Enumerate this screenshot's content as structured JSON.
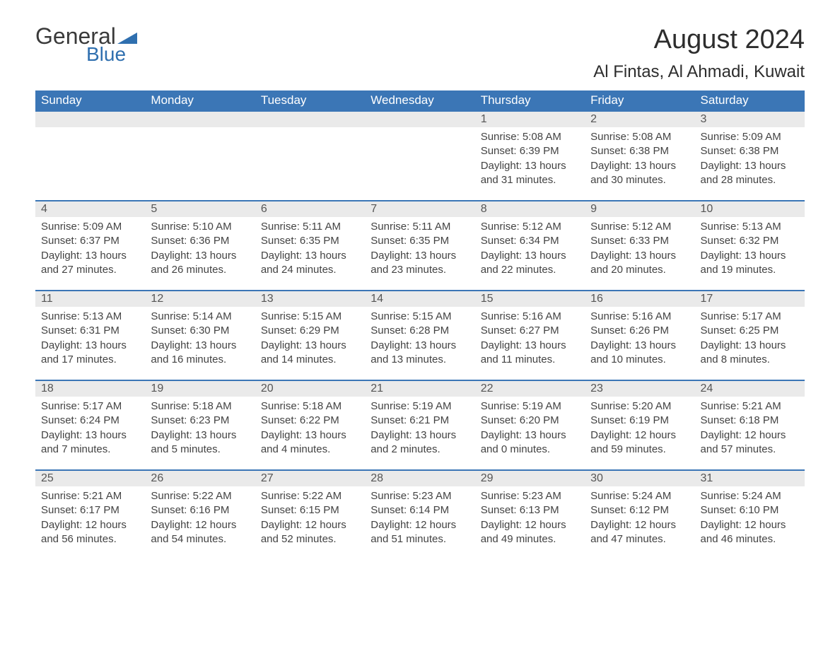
{
  "logo": {
    "word1": "General",
    "word2": "Blue",
    "icon_color": "#2f6faf"
  },
  "header": {
    "title": "August 2024",
    "location": "Al Fintas, Al Ahmadi, Kuwait"
  },
  "colors": {
    "header_bg": "#3b76b6",
    "header_text": "#ffffff",
    "day_header_bg": "#eaeaea",
    "day_header_text": "#565656",
    "row_divider": "#3b76b6",
    "body_text": "#434343",
    "accent": "#2f6faf"
  },
  "labels": {
    "sunrise": "Sunrise:",
    "sunset": "Sunset:",
    "daylight": "Daylight:"
  },
  "daysOfWeek": [
    "Sunday",
    "Monday",
    "Tuesday",
    "Wednesday",
    "Thursday",
    "Friday",
    "Saturday"
  ],
  "weeks": [
    [
      {
        "day": null
      },
      {
        "day": null
      },
      {
        "day": null
      },
      {
        "day": null
      },
      {
        "day": "1",
        "sunrise": "5:08 AM",
        "sunset": "6:39 PM",
        "daylight": "13 hours and 31 minutes."
      },
      {
        "day": "2",
        "sunrise": "5:08 AM",
        "sunset": "6:38 PM",
        "daylight": "13 hours and 30 minutes."
      },
      {
        "day": "3",
        "sunrise": "5:09 AM",
        "sunset": "6:38 PM",
        "daylight": "13 hours and 28 minutes."
      }
    ],
    [
      {
        "day": "4",
        "sunrise": "5:09 AM",
        "sunset": "6:37 PM",
        "daylight": "13 hours and 27 minutes."
      },
      {
        "day": "5",
        "sunrise": "5:10 AM",
        "sunset": "6:36 PM",
        "daylight": "13 hours and 26 minutes."
      },
      {
        "day": "6",
        "sunrise": "5:11 AM",
        "sunset": "6:35 PM",
        "daylight": "13 hours and 24 minutes."
      },
      {
        "day": "7",
        "sunrise": "5:11 AM",
        "sunset": "6:35 PM",
        "daylight": "13 hours and 23 minutes."
      },
      {
        "day": "8",
        "sunrise": "5:12 AM",
        "sunset": "6:34 PM",
        "daylight": "13 hours and 22 minutes."
      },
      {
        "day": "9",
        "sunrise": "5:12 AM",
        "sunset": "6:33 PM",
        "daylight": "13 hours and 20 minutes."
      },
      {
        "day": "10",
        "sunrise": "5:13 AM",
        "sunset": "6:32 PM",
        "daylight": "13 hours and 19 minutes."
      }
    ],
    [
      {
        "day": "11",
        "sunrise": "5:13 AM",
        "sunset": "6:31 PM",
        "daylight": "13 hours and 17 minutes."
      },
      {
        "day": "12",
        "sunrise": "5:14 AM",
        "sunset": "6:30 PM",
        "daylight": "13 hours and 16 minutes."
      },
      {
        "day": "13",
        "sunrise": "5:15 AM",
        "sunset": "6:29 PM",
        "daylight": "13 hours and 14 minutes."
      },
      {
        "day": "14",
        "sunrise": "5:15 AM",
        "sunset": "6:28 PM",
        "daylight": "13 hours and 13 minutes."
      },
      {
        "day": "15",
        "sunrise": "5:16 AM",
        "sunset": "6:27 PM",
        "daylight": "13 hours and 11 minutes."
      },
      {
        "day": "16",
        "sunrise": "5:16 AM",
        "sunset": "6:26 PM",
        "daylight": "13 hours and 10 minutes."
      },
      {
        "day": "17",
        "sunrise": "5:17 AM",
        "sunset": "6:25 PM",
        "daylight": "13 hours and 8 minutes."
      }
    ],
    [
      {
        "day": "18",
        "sunrise": "5:17 AM",
        "sunset": "6:24 PM",
        "daylight": "13 hours and 7 minutes."
      },
      {
        "day": "19",
        "sunrise": "5:18 AM",
        "sunset": "6:23 PM",
        "daylight": "13 hours and 5 minutes."
      },
      {
        "day": "20",
        "sunrise": "5:18 AM",
        "sunset": "6:22 PM",
        "daylight": "13 hours and 4 minutes."
      },
      {
        "day": "21",
        "sunrise": "5:19 AM",
        "sunset": "6:21 PM",
        "daylight": "13 hours and 2 minutes."
      },
      {
        "day": "22",
        "sunrise": "5:19 AM",
        "sunset": "6:20 PM",
        "daylight": "13 hours and 0 minutes."
      },
      {
        "day": "23",
        "sunrise": "5:20 AM",
        "sunset": "6:19 PM",
        "daylight": "12 hours and 59 minutes."
      },
      {
        "day": "24",
        "sunrise": "5:21 AM",
        "sunset": "6:18 PM",
        "daylight": "12 hours and 57 minutes."
      }
    ],
    [
      {
        "day": "25",
        "sunrise": "5:21 AM",
        "sunset": "6:17 PM",
        "daylight": "12 hours and 56 minutes."
      },
      {
        "day": "26",
        "sunrise": "5:22 AM",
        "sunset": "6:16 PM",
        "daylight": "12 hours and 54 minutes."
      },
      {
        "day": "27",
        "sunrise": "5:22 AM",
        "sunset": "6:15 PM",
        "daylight": "12 hours and 52 minutes."
      },
      {
        "day": "28",
        "sunrise": "5:23 AM",
        "sunset": "6:14 PM",
        "daylight": "12 hours and 51 minutes."
      },
      {
        "day": "29",
        "sunrise": "5:23 AM",
        "sunset": "6:13 PM",
        "daylight": "12 hours and 49 minutes."
      },
      {
        "day": "30",
        "sunrise": "5:24 AM",
        "sunset": "6:12 PM",
        "daylight": "12 hours and 47 minutes."
      },
      {
        "day": "31",
        "sunrise": "5:24 AM",
        "sunset": "6:10 PM",
        "daylight": "12 hours and 46 minutes."
      }
    ]
  ]
}
